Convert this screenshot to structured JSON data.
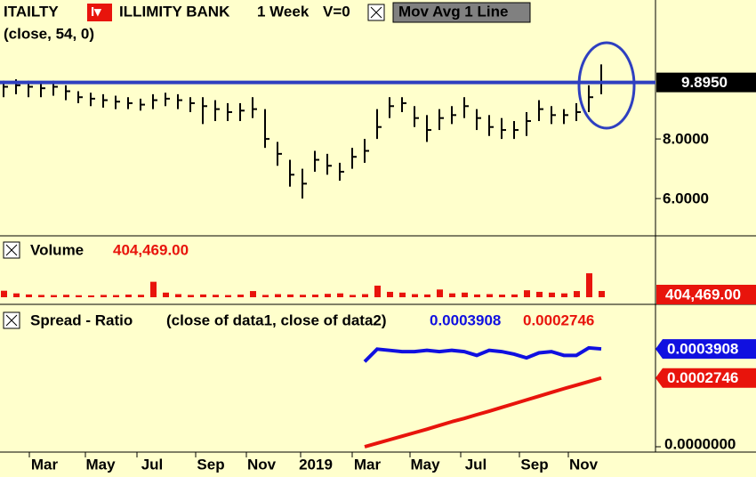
{
  "header": {
    "symbol": "ITAILTY",
    "icon": "I▾",
    "name": "ILLIMITY BANK",
    "interval": "1 Week",
    "volume_flag": "V=0",
    "study": "Mov Avg 1 Line",
    "params": "(close,  54,  0)"
  },
  "x_labels": [
    "Mar",
    "May",
    "Jul",
    "Sep",
    "Nov",
    "2019",
    "Mar",
    "May",
    "Jul",
    "Sep",
    "Nov"
  ],
  "chart_data": [
    {
      "type": "ohlc",
      "color": "#000000",
      "high": [
        9.95,
        10.0,
        9.95,
        9.9,
        9.95,
        9.8,
        9.6,
        9.55,
        9.5,
        9.45,
        9.4,
        9.35,
        9.5,
        9.55,
        9.5,
        9.4,
        9.4,
        9.3,
        9.2,
        9.2,
        9.4,
        9.0,
        7.9,
        7.3,
        7.0,
        7.6,
        7.5,
        7.2,
        7.7,
        8.0,
        9.0,
        9.4,
        9.4,
        9.1,
        8.8,
        9.0,
        9.1,
        9.4,
        9.0,
        8.8,
        8.7,
        8.6,
        8.9,
        9.3,
        9.1,
        9.0,
        9.2,
        9.8,
        10.5
      ],
      "low": [
        9.4,
        9.5,
        9.4,
        9.4,
        9.45,
        9.3,
        9.2,
        9.1,
        9.05,
        9.0,
        9.0,
        8.95,
        9.0,
        9.1,
        9.0,
        8.9,
        8.5,
        8.6,
        8.6,
        8.6,
        8.7,
        7.7,
        7.1,
        6.4,
        6.0,
        6.9,
        6.8,
        6.6,
        7.0,
        7.2,
        8.0,
        8.7,
        8.9,
        8.4,
        7.9,
        8.3,
        8.5,
        8.7,
        8.3,
        8.1,
        8.0,
        8.0,
        8.1,
        8.6,
        8.5,
        8.5,
        8.6,
        8.9,
        9.5
      ],
      "close": [
        9.75,
        9.8,
        9.75,
        9.7,
        9.75,
        9.6,
        9.4,
        9.35,
        9.3,
        9.25,
        9.2,
        9.15,
        9.3,
        9.35,
        9.3,
        9.2,
        9.1,
        9.0,
        8.9,
        8.95,
        9.0,
        8.0,
        7.5,
        6.8,
        6.5,
        7.3,
        7.1,
        6.9,
        7.4,
        7.6,
        8.4,
        9.1,
        9.2,
        8.7,
        8.3,
        8.7,
        8.8,
        9.1,
        8.7,
        8.4,
        8.3,
        8.3,
        8.6,
        9.0,
        8.8,
        8.8,
        8.9,
        9.4,
        9.9
      ],
      "ylim": [
        4.75,
        12.66
      ],
      "yticks": [
        {
          "value": 8,
          "label": "8.0000"
        },
        {
          "value": 6,
          "label": "6.0000"
        }
      ],
      "mov_avg": {
        "value": 9.895,
        "value_label": "9.8950",
        "color": "#2e3fc0"
      }
    },
    {
      "type": "bar",
      "title": "Volume",
      "readout": "404,469.00",
      "color": "#e8140c",
      "values": [
        420000,
        250000,
        180000,
        150000,
        140000,
        160000,
        130000,
        120000,
        150000,
        140000,
        170000,
        160000,
        1000000,
        300000,
        200000,
        150000,
        180000,
        160000,
        140000,
        170000,
        400000,
        150000,
        200000,
        180000,
        160000,
        170000,
        220000,
        250000,
        150000,
        200000,
        750000,
        350000,
        300000,
        200000,
        180000,
        500000,
        250000,
        300000,
        180000,
        200000,
        170000,
        180000,
        450000,
        350000,
        300000,
        250000,
        400000,
        1550000,
        404469
      ],
      "value_labels": {
        "48": "404,469.00"
      },
      "ylim": [
        0,
        3800000
      ]
    },
    {
      "type": "line",
      "title": "Spread - Ratio",
      "subtitle": "(close of data1,  close of data2)",
      "series": [
        {
          "color": "#1010e0",
          "readout": "0.0003908",
          "values": [
            null,
            null,
            null,
            null,
            null,
            null,
            null,
            null,
            null,
            null,
            null,
            null,
            null,
            null,
            null,
            null,
            null,
            null,
            null,
            null,
            null,
            null,
            null,
            null,
            null,
            null,
            null,
            null,
            null,
            0.00034,
            0.00039,
            0.000385,
            0.00038,
            0.00038,
            0.000385,
            0.00038,
            0.000385,
            0.00038,
            0.000365,
            0.000385,
            0.00038,
            0.00037,
            0.000355,
            0.000375,
            0.00038,
            0.000365,
            0.000365,
            0.000395,
            0.0003908
          ]
        },
        {
          "color": "#e8140c",
          "readout": "0.0002746",
          "values": [
            null,
            null,
            null,
            null,
            null,
            null,
            null,
            null,
            null,
            null,
            null,
            null,
            null,
            null,
            null,
            null,
            null,
            null,
            null,
            null,
            null,
            null,
            null,
            null,
            null,
            null,
            null,
            null,
            null,
            0.0,
            1.4e-05,
            2.8e-05,
            4.2e-05,
            5.6e-05,
            7e-05,
            8.5e-05,
            0.0001,
            0.000113,
            0.000128,
            0.000142,
            0.000157,
            0.000172,
            0.000187,
            0.000202,
            0.000217,
            0.000232,
            0.000246,
            0.00026,
            0.0002746
          ]
        }
      ],
      "ylim": [
        -1.78e-05,
        0.000551
      ],
      "yticks": [
        {
          "value": 0,
          "label": "0.0000000"
        }
      ]
    }
  ]
}
